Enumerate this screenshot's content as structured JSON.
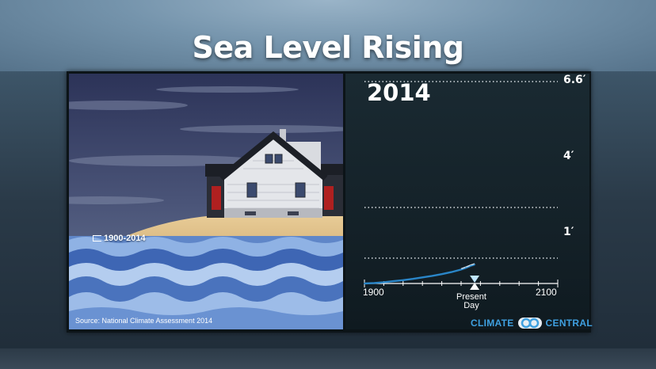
{
  "title": "Sea Level Rising",
  "scene": {
    "period_label": "1900-2014",
    "source": "Source: National Climate Assessment 2014"
  },
  "chart_data": {
    "type": "line",
    "title": "",
    "current_year_label": "2014",
    "x_range": [
      1900,
      2100
    ],
    "x_ticks": [
      1900,
      1920,
      1940,
      1960,
      1980,
      2000,
      2020,
      2040,
      2060,
      2080,
      2100
    ],
    "x_tick_labels": [
      "1900",
      "2100"
    ],
    "y_scale": "stepped",
    "y_levels": [
      {
        "value_ft": 0.0,
        "label": ""
      },
      {
        "value_ft": 1.0,
        "label": "1′"
      },
      {
        "value_ft": 4.0,
        "label": "4′"
      },
      {
        "value_ft": 6.6,
        "label": "6.6′"
      }
    ],
    "grid": true,
    "marker": {
      "year": 2014,
      "label_line1": "Present",
      "label_line2": "Day"
    },
    "series": [
      {
        "color": "#2a86c8",
        "x": [
          1900,
          1910,
          1920,
          1930,
          1940,
          1950,
          1960,
          1970,
          1980,
          1990,
          2000,
          2005,
          2010,
          2014
        ],
        "y": [
          0.0,
          0.02,
          0.05,
          0.09,
          0.13,
          0.18,
          0.24,
          0.3,
          0.37,
          0.45,
          0.55,
          0.62,
          0.7,
          0.75
        ]
      }
    ]
  },
  "logo": {
    "left_text": "CLIMATE",
    "right_text": "CENTRAL"
  },
  "colors": {
    "sea_line": "#2a86c8",
    "logo_blue": "#3fa0e0",
    "background": "#1f2c38"
  }
}
